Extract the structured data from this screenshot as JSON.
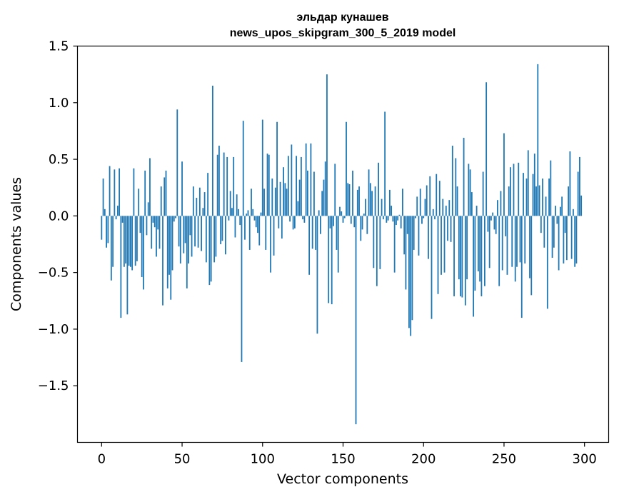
{
  "chart_data": {
    "type": "bar",
    "title_line1": "эльдар кунашев",
    "title_line2": "news_upos_skipgram_300_5_2019 model",
    "xlabel": "Vector components",
    "ylabel": "Components values",
    "xlim": [
      -15,
      315
    ],
    "ylim": [
      -2.0,
      1.5
    ],
    "xticks": [
      0,
      50,
      100,
      150,
      200,
      250,
      300
    ],
    "xtick_labels": [
      "0",
      "50",
      "100",
      "150",
      "200",
      "250",
      "300"
    ],
    "yticks": [
      1.5,
      1.0,
      0.5,
      0.0,
      -0.5,
      -1.0,
      -1.5
    ],
    "ytick_labels": [
      "1.5",
      "1.0",
      "0.5",
      "0.0",
      "−0.5",
      "−1.0",
      "−1.5"
    ],
    "bar_color": "#1f77b4",
    "values": [
      -0.21,
      0.33,
      0.06,
      -0.28,
      -0.24,
      0.44,
      -0.57,
      -0.45,
      0.41,
      -0.03,
      0.09,
      0.42,
      -0.9,
      -0.06,
      -0.45,
      -0.42,
      -0.87,
      -0.44,
      -0.45,
      -0.48,
      0.42,
      -0.44,
      -0.4,
      0.24,
      -0.15,
      -0.54,
      -0.65,
      0.4,
      -0.17,
      0.12,
      0.51,
      -0.29,
      -0.06,
      -0.1,
      -0.36,
      -0.12,
      -0.29,
      0.26,
      -0.79,
      0.34,
      0.4,
      -0.64,
      -0.52,
      -0.74,
      -0.48,
      -0.05,
      -0.02,
      0.94,
      -0.27,
      -0.42,
      0.48,
      -0.33,
      -0.24,
      -0.64,
      -0.42,
      -0.17,
      -0.36,
      0.26,
      -0.27,
      0.16,
      -0.28,
      0.25,
      -0.31,
      0.07,
      0.21,
      -0.41,
      0.38,
      -0.61,
      -0.58,
      1.15,
      -0.41,
      -0.36,
      0.54,
      0.62,
      -0.25,
      -0.22,
      0.56,
      -0.34,
      0.52,
      -0.04,
      0.22,
      0.07,
      0.52,
      -0.19,
      0.19,
      0.06,
      -0.08,
      -1.29,
      0.84,
      -0.21,
      0.02,
      0.05,
      -0.3,
      0.24,
      0.06,
      -0.04,
      -0.1,
      -0.15,
      -0.26,
      0.03,
      0.85,
      0.24,
      -0.3,
      0.55,
      0.54,
      -0.5,
      0.33,
      -0.35,
      0.25,
      0.83,
      -0.11,
      0.3,
      -0.2,
      0.43,
      0.29,
      0.24,
      0.53,
      -0.05,
      0.63,
      -0.12,
      -0.11,
      0.53,
      0.13,
      0.32,
      0.52,
      -0.03,
      -0.06,
      0.64,
      0.4,
      -0.52,
      0.64,
      -0.29,
      0.39,
      -0.3,
      -1.04,
      0.05,
      -0.16,
      0.22,
      0.32,
      0.48,
      1.25,
      -0.77,
      -0.11,
      -0.78,
      -0.09,
      0.46,
      -0.3,
      -0.5,
      0.08,
      0.04,
      -0.06,
      -0.02,
      0.83,
      0.29,
      0.28,
      -0.07,
      0.4,
      -0.1,
      -1.84,
      0.23,
      0.26,
      -0.22,
      -0.12,
      0.02,
      0.15,
      -0.16,
      0.41,
      0.29,
      0.22,
      -0.46,
      0.26,
      -0.62,
      0.47,
      -0.47,
      0.15,
      -0.03,
      0.92,
      -0.06,
      -0.04,
      0.23,
      0.09,
      -0.05,
      -0.5,
      -0.08,
      -0.04,
      0.01,
      -0.11,
      0.24,
      -0.34,
      -0.65,
      -0.16,
      -0.99,
      -1.06,
      -0.92,
      -0.3,
      -0.02,
      0.17,
      -0.35,
      0.24,
      -0.07,
      -0.02,
      0.15,
      0.27,
      -0.38,
      0.35,
      -0.91,
      0.06,
      -0.03,
      0.37,
      -0.69,
      0.31,
      -0.52,
      0.15,
      -0.5,
      0.09,
      -0.22,
      0.14,
      -0.23,
      0.62,
      -0.71,
      0.51,
      0.26,
      -0.56,
      -0.71,
      -0.72,
      0.69,
      -0.79,
      -0.56,
      0.46,
      0.41,
      0.21,
      -0.89,
      -0.66,
      0.09,
      -0.49,
      -0.58,
      -0.71,
      0.39,
      -0.62,
      1.18,
      -0.14,
      -0.46,
      -0.04,
      0.03,
      -0.12,
      -0.16,
      0.14,
      -0.62,
      0.22,
      -0.48,
      0.73,
      -0.18,
      -0.52,
      0.26,
      0.43,
      -0.45,
      0.46,
      -0.58,
      -0.45,
      0.47,
      -0.41,
      -0.9,
      0.38,
      -0.42,
      0.33,
      0.58,
      -0.55,
      -0.7,
      0.37,
      0.55,
      0.26,
      1.34,
      0.27,
      -0.15,
      0.33,
      -0.28,
      0.17,
      -0.82,
      0.33,
      0.49,
      -0.37,
      -0.28,
      0.09,
      -0.07,
      -0.48,
      0.08,
      0.17,
      -0.42,
      -0.15,
      -0.39,
      0.26,
      0.57,
      -0.38,
      0.06,
      -0.45,
      -0.42,
      0.39,
      0.52,
      0.18
    ]
  }
}
